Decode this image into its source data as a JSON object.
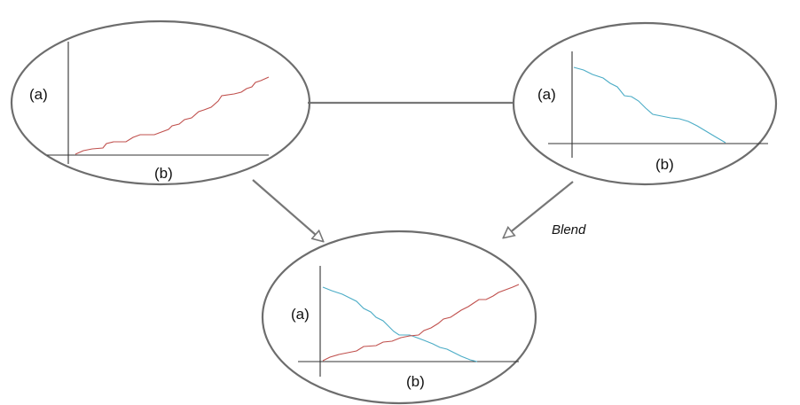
{
  "diagram": {
    "colors": {
      "rising": "#c0504d",
      "falling": "#4bacc6",
      "outline": "#6d6d6d",
      "axis": "#333333"
    },
    "left_ellipse": {
      "y_label": "(a)",
      "x_label": "(b)"
    },
    "right_ellipse": {
      "y_label": "(a)",
      "x_label": "(b)"
    },
    "bottom_ellipse": {
      "y_label": "(a)",
      "x_label": "(b)"
    },
    "blend_label": "Blend"
  }
}
